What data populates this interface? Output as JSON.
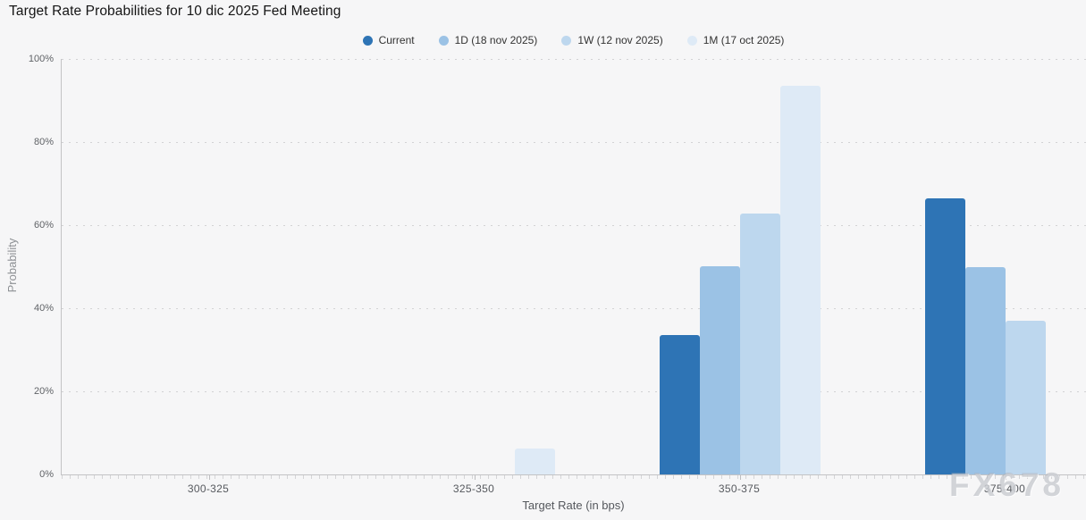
{
  "title": "Target Rate Probabilities for 10 dic 2025 Fed Meeting",
  "legend": {
    "items": [
      {
        "label": "Current",
        "color": "#2e74b5"
      },
      {
        "label": "1D (18 nov 2025)",
        "color": "#9bc2e5"
      },
      {
        "label": "1W (12 nov 2025)",
        "color": "#bdd7ee"
      },
      {
        "label": "1M (17 oct 2025)",
        "color": "#deeaf6"
      }
    ]
  },
  "watermark": "FX678",
  "chart_data": {
    "type": "bar",
    "title": "Target Rate Probabilities for 10 dic 2025 Fed Meeting",
    "categories": [
      "300-325",
      "325-350",
      "350-375",
      "375-400"
    ],
    "series": [
      {
        "name": "Current",
        "color": "#2e74b5",
        "values": [
          0,
          0,
          33.6,
          66.4
        ]
      },
      {
        "name": "1D (18 nov 2025)",
        "color": "#9bc2e5",
        "values": [
          0,
          0,
          50.1,
          49.9
        ]
      },
      {
        "name": "1W (12 nov 2025)",
        "color": "#bdd7ee",
        "values": [
          0,
          0,
          62.8,
          37.0
        ]
      },
      {
        "name": "1M (17 oct 2025)",
        "color": "#deeaf6",
        "values": [
          0,
          6.2,
          93.5,
          0
        ]
      }
    ],
    "xlabel": "Target Rate (in bps)",
    "ylabel": "Probability",
    "ylim": [
      0,
      100
    ],
    "yticks": [
      "0%",
      "20%",
      "40%",
      "60%",
      "80%",
      "100%"
    ],
    "grid": "dotted-horizontal",
    "legend_position": "top-center",
    "background": "#f6f6f7"
  }
}
